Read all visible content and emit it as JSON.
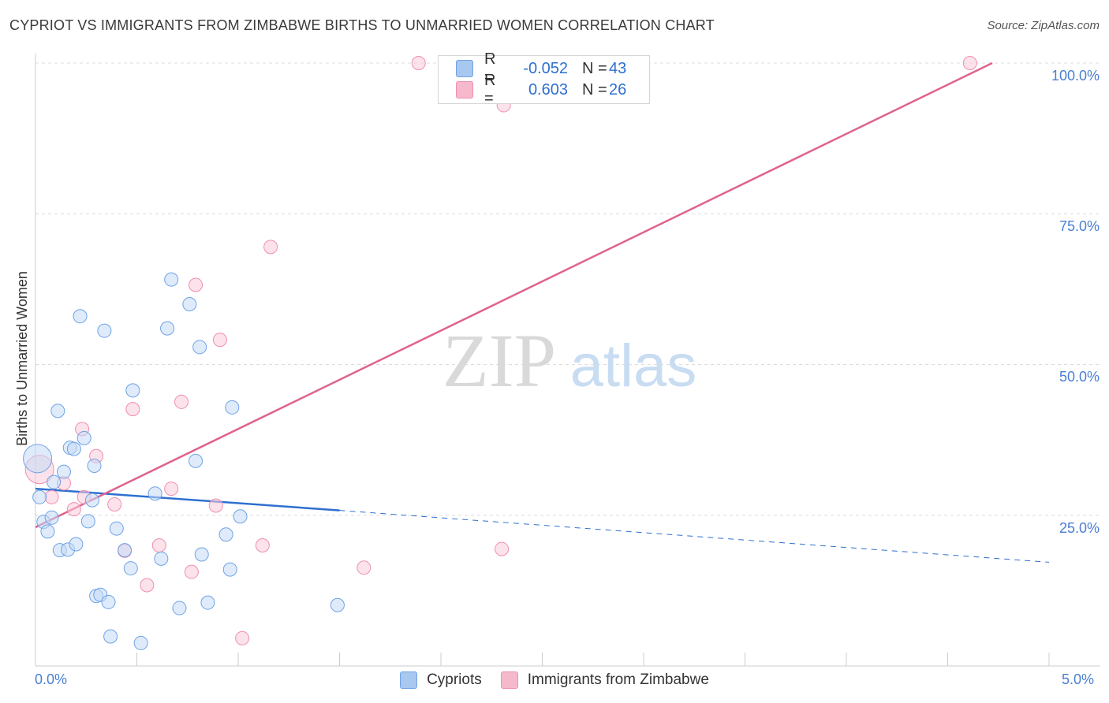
{
  "header": {
    "title": "CYPRIOT VS IMMIGRANTS FROM ZIMBABWE BIRTHS TO UNMARRIED WOMEN CORRELATION CHART",
    "source": "Source: ZipAtlas.com"
  },
  "watermark": {
    "zip": "ZIP",
    "atlas": "atlas"
  },
  "legend": {
    "r_label": "R =",
    "n_label": "N =",
    "rows": [
      {
        "r": "-0.052",
        "n": "43",
        "color": "#a8c8f0"
      },
      {
        "r": "0.603",
        "n": "26",
        "color": "#f6b9cc"
      }
    ]
  },
  "bottom_legend": [
    {
      "label": "Cypriots",
      "color": "#a8c8f0"
    },
    {
      "label": "Immigrants from Zimbabwe",
      "color": "#f6b9cc"
    }
  ],
  "chart_data": {
    "type": "scatter",
    "title": "CYPRIOT VS IMMIGRANTS FROM ZIMBABWE BIRTHS TO UNMARRIED WOMEN CORRELATION CHART",
    "xlabel": "",
    "ylabel": "Births to Unmarried Women",
    "xlim": [
      0,
      5
    ],
    "ylim": [
      0,
      100
    ],
    "x_tick_labels": [
      "0.0%",
      "5.0%"
    ],
    "y_tick_labels": [
      "100.0%",
      "75.0%",
      "50.0%",
      "25.0%"
    ],
    "y_tick_values": [
      100,
      75,
      50,
      25
    ],
    "series": [
      {
        "name": "Cypriots",
        "color": "#6fa3e6",
        "fill": "#c5dbf5",
        "points": [
          [
            0.01,
            34.4
          ],
          [
            0.02,
            28.0
          ],
          [
            0.04,
            23.9
          ],
          [
            0.06,
            22.3
          ],
          [
            0.08,
            24.6
          ],
          [
            0.09,
            30.5
          ],
          [
            0.11,
            42.3
          ],
          [
            0.12,
            19.2
          ],
          [
            0.14,
            32.2
          ],
          [
            0.16,
            19.3
          ],
          [
            0.17,
            36.2
          ],
          [
            0.19,
            36.0
          ],
          [
            0.2,
            20.2
          ],
          [
            0.22,
            58.0
          ],
          [
            0.24,
            37.8
          ],
          [
            0.26,
            24.0
          ],
          [
            0.28,
            27.5
          ],
          [
            0.29,
            33.2
          ],
          [
            0.3,
            11.6
          ],
          [
            0.32,
            11.8
          ],
          [
            0.34,
            55.6
          ],
          [
            0.36,
            10.6
          ],
          [
            0.37,
            4.9
          ],
          [
            0.4,
            22.8
          ],
          [
            0.44,
            19.2
          ],
          [
            0.47,
            16.2
          ],
          [
            0.48,
            45.7
          ],
          [
            0.52,
            3.8
          ],
          [
            0.59,
            28.6
          ],
          [
            0.62,
            17.8
          ],
          [
            0.65,
            56.0
          ],
          [
            0.67,
            64.1
          ],
          [
            0.71,
            9.6
          ],
          [
            0.76,
            60.0
          ],
          [
            0.79,
            34.0
          ],
          [
            0.81,
            52.9
          ],
          [
            0.82,
            18.5
          ],
          [
            0.85,
            10.5
          ],
          [
            0.94,
            21.8
          ],
          [
            0.96,
            16.0
          ],
          [
            0.97,
            42.9
          ],
          [
            1.01,
            24.8
          ],
          [
            1.49,
            10.1
          ]
        ],
        "trend": {
          "x": [
            0,
            1.5
          ],
          "y": [
            29.4,
            25.8
          ]
        },
        "trend_extension": {
          "x": [
            1.5,
            5.0
          ],
          "y": [
            25.8,
            17.2
          ]
        }
      },
      {
        "name": "Immigrants from Zimbabwe",
        "color": "#ef8fb0",
        "fill": "#f9cad8",
        "points": [
          [
            0.02,
            32.6
          ],
          [
            0.08,
            28.0
          ],
          [
            0.14,
            30.3
          ],
          [
            0.19,
            26.0
          ],
          [
            0.23,
            39.3
          ],
          [
            0.24,
            28.0
          ],
          [
            0.3,
            34.8
          ],
          [
            0.39,
            26.8
          ],
          [
            0.44,
            19.1
          ],
          [
            0.48,
            42.6
          ],
          [
            0.55,
            13.4
          ],
          [
            0.61,
            20.0
          ],
          [
            0.67,
            29.4
          ],
          [
            0.72,
            43.8
          ],
          [
            0.77,
            15.6
          ],
          [
            0.79,
            63.2
          ],
          [
            0.89,
            26.6
          ],
          [
            0.91,
            54.1
          ],
          [
            1.02,
            4.6
          ],
          [
            1.12,
            20.0
          ],
          [
            1.16,
            69.5
          ],
          [
            1.62,
            16.3
          ],
          [
            1.89,
            100.0
          ],
          [
            2.31,
            93.0
          ],
          [
            2.3,
            19.4
          ],
          [
            4.61,
            100.0
          ]
        ],
        "trend": {
          "x": [
            0,
            4.72
          ],
          "y": [
            23.0,
            100.0
          ]
        }
      }
    ]
  }
}
